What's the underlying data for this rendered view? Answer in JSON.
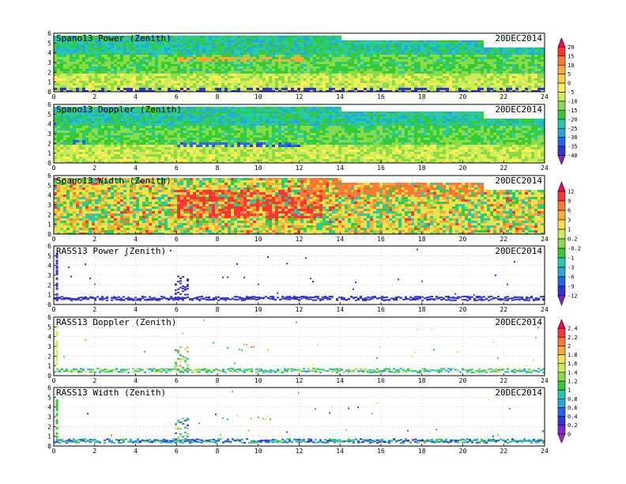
{
  "chart_data": [
    {
      "type": "heatmap",
      "title": "Spano13 Power (Zenith)",
      "date": "20DEC2014",
      "xlim": [
        0,
        24
      ],
      "ylim": [
        0,
        6
      ],
      "xticks": [
        0,
        2,
        4,
        6,
        8,
        10,
        12,
        14,
        16,
        18,
        20,
        22,
        24
      ],
      "yticks": [
        0,
        1,
        2,
        3,
        4,
        5,
        6
      ],
      "colorbar": "power",
      "grid": true,
      "fill": "dense",
      "features": [
        {
          "t0": 6,
          "t1": 12.2,
          "h": 3.4,
          "value": 9
        },
        {
          "t0": 0,
          "t1": 24,
          "h": 0.3,
          "value": -35
        }
      ]
    },
    {
      "type": "heatmap",
      "title": "Spano13 Doppler (Zenith)",
      "date": "20DEC2014",
      "xlim": [
        0,
        24
      ],
      "ylim": [
        0,
        6
      ],
      "xticks": [
        0,
        2,
        4,
        6,
        8,
        10,
        12,
        14,
        16,
        18,
        20,
        22,
        24
      ],
      "yticks": [
        0,
        1,
        2,
        3,
        4,
        5,
        6
      ],
      "colorbar": "power",
      "grid": true,
      "fill": "dense",
      "features": [
        {
          "t0": 6,
          "t1": 12,
          "h": 2.0,
          "value": -32
        },
        {
          "t0": 0.8,
          "t1": 1.5,
          "h": 2.2,
          "value": -30
        }
      ]
    },
    {
      "type": "heatmap",
      "title": "Spano13 Width (Zenith)",
      "date": "20DEC2014",
      "xlim": [
        0,
        24
      ],
      "ylim": [
        0,
        6
      ],
      "xticks": [
        0,
        2,
        4,
        6,
        8,
        10,
        12,
        14,
        16,
        18,
        20,
        22,
        24
      ],
      "yticks": [
        0,
        1,
        2,
        3,
        4,
        5,
        6
      ],
      "colorbar": "width",
      "grid": true,
      "fill": "dense",
      "features": [
        {
          "t0": 6,
          "t1": 13,
          "h": 3.3,
          "value": 12
        },
        {
          "t0": 12,
          "t1": 21,
          "h": 5.0,
          "value": 9
        }
      ]
    },
    {
      "type": "heatmap",
      "title": "RASS13 Power (Zenith)",
      "date": "20DEC2014",
      "xlim": [
        0,
        24
      ],
      "ylim": [
        0,
        6
      ],
      "xticks": [
        0,
        2,
        4,
        6,
        8,
        10,
        12,
        14,
        16,
        18,
        20,
        22,
        24
      ],
      "yticks": [
        0,
        1,
        2,
        3,
        4,
        5,
        6
      ],
      "colorbar": "width",
      "grid": true,
      "fill": "sparse",
      "features": [
        {
          "t0": 0,
          "t1": 24,
          "h": 0.7,
          "value": -11
        }
      ]
    },
    {
      "type": "heatmap",
      "title": "RASS13 Doppler (Zenith)",
      "date": "20DEC2014",
      "xlim": [
        0,
        24
      ],
      "ylim": [
        0,
        6
      ],
      "xticks": [
        0,
        2,
        4,
        6,
        8,
        10,
        12,
        14,
        16,
        18,
        20,
        22,
        24
      ],
      "yticks": [
        0,
        1,
        2,
        3,
        4,
        5,
        6
      ],
      "colorbar": "rass",
      "grid": true,
      "fill": "sparse",
      "features": [
        {
          "t0": 0,
          "t1": 24,
          "h": 0.6,
          "value": 1.1
        }
      ]
    },
    {
      "type": "heatmap",
      "title": "RASS13 Width (Zenith)",
      "date": "20DEC2014",
      "xlim": [
        0,
        24
      ],
      "ylim": [
        0,
        6
      ],
      "xticks": [
        0,
        2,
        4,
        6,
        8,
        10,
        12,
        14,
        16,
        18,
        20,
        22,
        24
      ],
      "yticks": [
        0,
        1,
        2,
        3,
        4,
        5,
        6
      ],
      "colorbar": "rass",
      "grid": true,
      "fill": "sparse",
      "features": [
        {
          "t0": 0,
          "t1": 24,
          "h": 0.6,
          "value": 0.7
        }
      ]
    }
  ],
  "colorbars": {
    "power": {
      "labels": [
        "20",
        "15",
        "10",
        "5",
        "0",
        "-5",
        "-10",
        "-15",
        "-20",
        "-25",
        "-30",
        "-35",
        "-40"
      ],
      "colors": [
        "#ff0066",
        "#ff3333",
        "#ff7733",
        "#ffaa33",
        "#ffcc44",
        "#ffee55",
        "#ccee55",
        "#88dd44",
        "#33cc33",
        "#22ccaa",
        "#22aadd",
        "#2266ee",
        "#3333dd",
        "#8822cc"
      ]
    },
    "width": {
      "labels": [
        "12",
        "9",
        "6",
        "3",
        "1",
        "0.2",
        "-0.2",
        "-1",
        "-3",
        "-6",
        "-9",
        "-12"
      ],
      "colors": [
        "#ff0066",
        "#ff3333",
        "#ff7733",
        "#ffaa33",
        "#ffdd44",
        "#ccee55",
        "#88dd44",
        "#33cc33",
        "#22ccaa",
        "#22aadd",
        "#2266ee",
        "#3333dd",
        "#8822cc"
      ]
    },
    "rass": {
      "labels": [
        "2.4",
        "2.2",
        "2",
        "1.8",
        "1.6",
        "1.4",
        "1.2",
        "1",
        "0.8",
        "0.6",
        "0.4",
        "0.2",
        "0"
      ],
      "colors": [
        "#ff0066",
        "#ff3333",
        "#ff7733",
        "#ffaa33",
        "#ffdd44",
        "#ccee55",
        "#88dd44",
        "#33cc33",
        "#22ccaa",
        "#22aadd",
        "#2266ee",
        "#3333dd",
        "#8822cc",
        "#aa22cc"
      ]
    }
  }
}
